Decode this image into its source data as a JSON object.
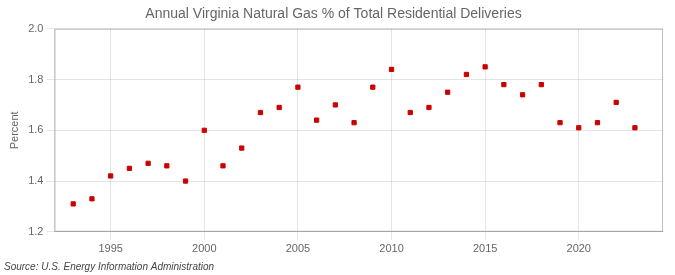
{
  "chart_data": {
    "type": "scatter",
    "title": "Annual Virginia Natural Gas % of Total Residential Deliveries",
    "ylabel": "Percent",
    "annotations": [
      "Source: U.S. Energy Information Administration"
    ],
    "x": [
      1993,
      1994,
      1995,
      1996,
      1997,
      1998,
      1999,
      2000,
      2001,
      2002,
      2003,
      2004,
      2005,
      2006,
      2007,
      2008,
      2009,
      2010,
      2011,
      2012,
      2013,
      2014,
      2015,
      2016,
      2017,
      2018,
      2019,
      2020,
      2021,
      2022,
      2023
    ],
    "values": [
      1.31,
      1.33,
      1.42,
      1.45,
      1.47,
      1.46,
      1.4,
      1.6,
      1.46,
      1.53,
      1.67,
      1.69,
      1.77,
      1.64,
      1.7,
      1.63,
      1.77,
      1.84,
      1.67,
      1.69,
      1.75,
      1.82,
      1.85,
      1.78,
      1.74,
      1.78,
      1.63,
      1.61,
      1.63,
      1.71,
      1.61
    ],
    "color": "#cc0000",
    "marker": "square",
    "xlim": [
      1992.0,
      2024.5
    ],
    "ylim": [
      1.2,
      2.0
    ],
    "xticks": [
      1995,
      2000,
      2005,
      2010,
      2015,
      2020
    ],
    "yticks": [
      1.2,
      1.4,
      1.6,
      1.8,
      {
        "value": 2.0,
        "label": "2.0"
      }
    ],
    "grid": true
  }
}
